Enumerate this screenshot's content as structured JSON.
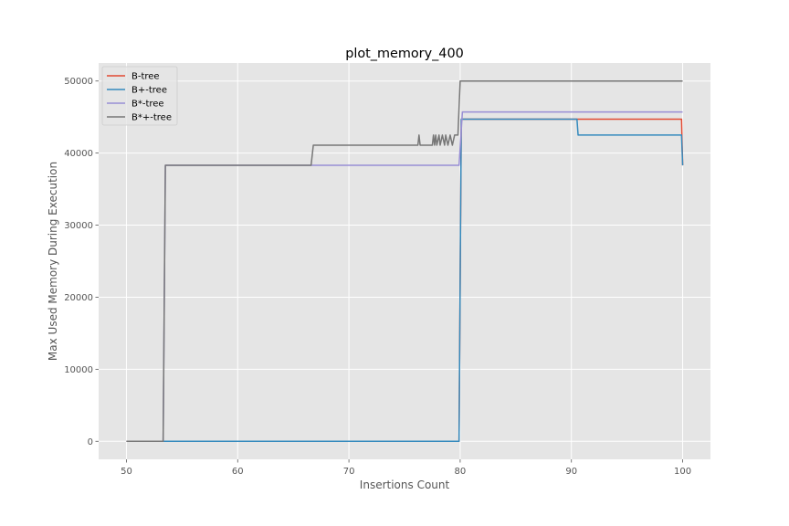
{
  "chart_data": {
    "type": "line",
    "title": "plot_memory_400",
    "xlabel": "Insertions Count",
    "ylabel": "Max Used Memory During Execution",
    "xlim": [
      47.5,
      102.5
    ],
    "ylim": [
      -2500,
      52500
    ],
    "xticks": [
      50,
      60,
      70,
      80,
      90,
      100
    ],
    "yticks": [
      0,
      10000,
      20000,
      30000,
      40000,
      50000
    ],
    "grid": true,
    "style": "ggplot",
    "legend_position": "top-left",
    "series": [
      {
        "name": "B-tree",
        "color": "#E24A33",
        "points": [
          [
            50,
            0
          ],
          [
            79.9,
            0
          ],
          [
            80.1,
            44700
          ],
          [
            99.9,
            44700
          ],
          [
            100,
            38300
          ]
        ]
      },
      {
        "name": "B+-tree",
        "color": "#348ABD",
        "points": [
          [
            50,
            0
          ],
          [
            79.9,
            0
          ],
          [
            80.1,
            44700
          ],
          [
            90.5,
            44700
          ],
          [
            90.6,
            42500
          ],
          [
            99.9,
            42500
          ],
          [
            100,
            38300
          ]
        ]
      },
      {
        "name": "B*-tree",
        "color": "#988ED5",
        "points": [
          [
            50,
            0
          ],
          [
            53.3,
            0
          ],
          [
            53.5,
            38300
          ],
          [
            79.9,
            38300
          ],
          [
            80.2,
            45700
          ],
          [
            100,
            45700
          ]
        ]
      },
      {
        "name": "B*+-tree",
        "color": "#777777",
        "points": [
          [
            50,
            0
          ],
          [
            53.3,
            0
          ],
          [
            53.5,
            38300
          ],
          [
            66.6,
            38300
          ],
          [
            66.8,
            41100
          ],
          [
            76.2,
            41100
          ],
          [
            76.3,
            42500
          ],
          [
            76.4,
            41100
          ],
          [
            77.5,
            41100
          ],
          [
            77.6,
            42500
          ],
          [
            77.7,
            41100
          ],
          [
            77.8,
            42500
          ],
          [
            77.9,
            41100
          ],
          [
            78.1,
            42500
          ],
          [
            78.2,
            41100
          ],
          [
            78.4,
            42500
          ],
          [
            78.6,
            41100
          ],
          [
            78.7,
            42500
          ],
          [
            78.9,
            41100
          ],
          [
            79.1,
            42500
          ],
          [
            79.3,
            41100
          ],
          [
            79.5,
            42500
          ],
          [
            79.8,
            42500
          ],
          [
            80.0,
            50000
          ],
          [
            100,
            50000
          ]
        ]
      }
    ]
  }
}
